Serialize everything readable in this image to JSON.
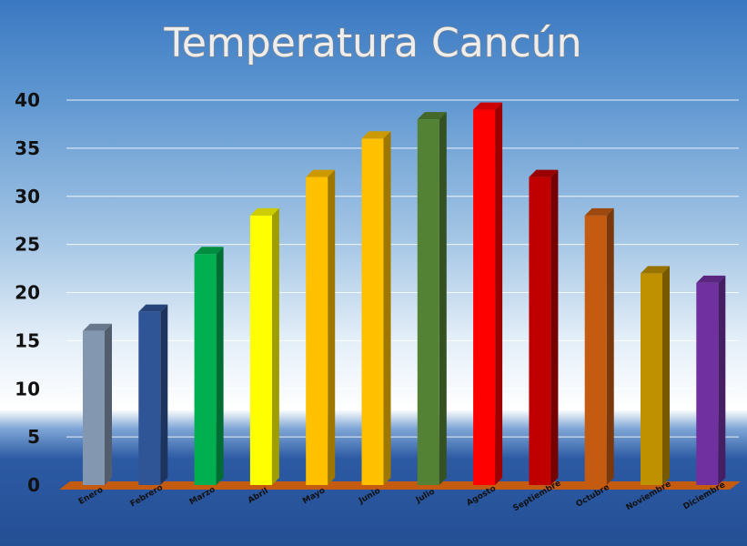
{
  "chart_data": {
    "type": "bar",
    "title": "Temperatura Cancún",
    "xlabel": "",
    "ylabel": "",
    "categories": [
      "Enero",
      "Febrero",
      "Marzo",
      "Abril",
      "Mayo",
      "Junio",
      "Julio",
      "Agosto",
      "Septiembre",
      "Octubre",
      "Noviembre",
      "Diciembre"
    ],
    "values": [
      16,
      18,
      24,
      28,
      32,
      36,
      38,
      39,
      32,
      28,
      22,
      21
    ],
    "colors": [
      "#8497b0",
      "#2f5597",
      "#00b050",
      "#ffff00",
      "#ffc000",
      "#ffc000",
      "#548235",
      "#ff0000",
      "#c00000",
      "#c55a11",
      "#bf9000",
      "#7030a0"
    ],
    "ylim": [
      0,
      40
    ],
    "yticks": [
      0,
      5,
      10,
      15,
      20,
      25,
      30,
      35,
      40
    ],
    "grid": true,
    "style": "3d-column",
    "floor_color": "#c55a11"
  }
}
